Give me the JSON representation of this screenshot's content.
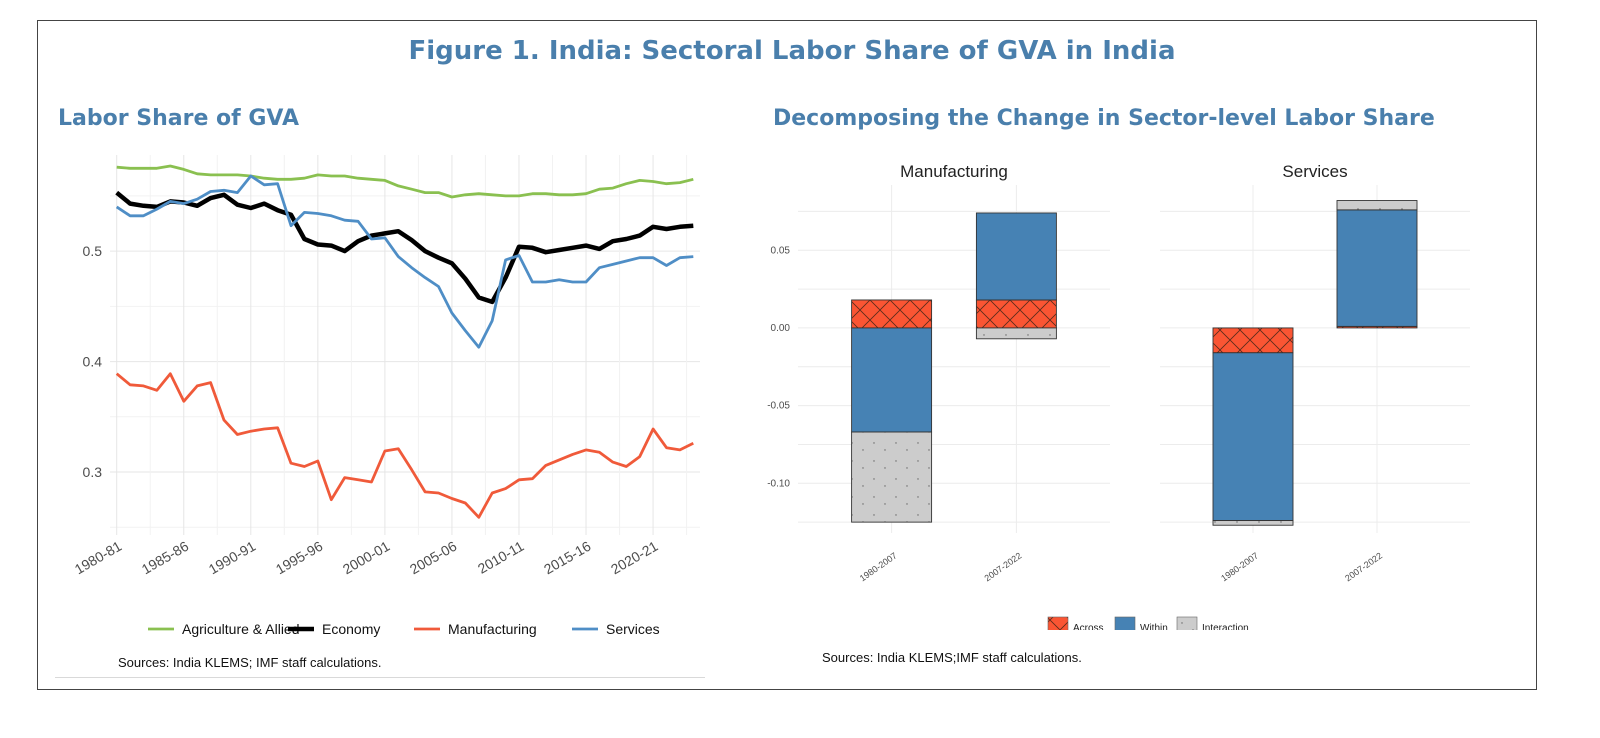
{
  "figure": {
    "title": "Figure 1. India: Sectoral Labor Share of GVA in India"
  },
  "colors": {
    "title_blue": "#4a7fac",
    "agriculture": "#8ac050",
    "economy": "#000000",
    "manufacturing": "#f05a3a",
    "services": "#4f8ec6",
    "across": "#fa5533",
    "within": "#4682b4",
    "interaction": "#cccccc"
  },
  "chart_data": [
    {
      "type": "line",
      "title": "Labor Share of GVA",
      "source": "Sources: India KLEMS; IMF staff calculations.",
      "xlabel": "",
      "ylabel": "",
      "x_start_year": 1980,
      "x_tick_labels": [
        "1980-81",
        "1985-86",
        "1990-91",
        "1995-96",
        "2000-01",
        "2005-06",
        "2010-11",
        "2015-16",
        "2020-21"
      ],
      "y_ticks": [
        0.3,
        0.4,
        0.5
      ],
      "y_tick_labels": [
        "0.3",
        "0.4",
        "0.5"
      ],
      "ylim": [
        0.243,
        0.587
      ],
      "xlim": [
        1979.5,
        2023.5
      ],
      "grid": true,
      "legend_position": "bottom",
      "x": [
        1980,
        1981,
        1982,
        1983,
        1984,
        1985,
        1986,
        1987,
        1988,
        1989,
        1990,
        1991,
        1992,
        1993,
        1994,
        1995,
        1996,
        1997,
        1998,
        1999,
        2000,
        2001,
        2002,
        2003,
        2004,
        2005,
        2006,
        2007,
        2008,
        2009,
        2010,
        2011,
        2012,
        2013,
        2014,
        2015,
        2016,
        2017,
        2018,
        2019,
        2020,
        2021,
        2022,
        2023
      ],
      "series": [
        {
          "name": "Agriculture & Allied",
          "color_key": "agriculture",
          "values": [
            0.576,
            0.575,
            0.575,
            0.575,
            0.577,
            0.574,
            0.57,
            0.569,
            0.569,
            0.569,
            0.568,
            0.566,
            0.565,
            0.565,
            0.566,
            0.569,
            0.568,
            0.568,
            0.566,
            0.565,
            0.564,
            0.559,
            0.556,
            0.553,
            0.553,
            0.549,
            0.551,
            0.552,
            0.551,
            0.55,
            0.55,
            0.552,
            0.552,
            0.551,
            0.551,
            0.552,
            0.556,
            0.557,
            0.561,
            0.564,
            0.563,
            0.561,
            0.562,
            0.565
          ]
        },
        {
          "name": "Economy",
          "color_key": "economy",
          "values": [
            0.553,
            0.543,
            0.541,
            0.54,
            0.545,
            0.544,
            0.541,
            0.548,
            0.551,
            0.542,
            0.539,
            0.543,
            0.537,
            0.533,
            0.511,
            0.506,
            0.505,
            0.5,
            0.509,
            0.514,
            0.516,
            0.518,
            0.51,
            0.5,
            0.494,
            0.489,
            0.475,
            0.458,
            0.454,
            0.476,
            0.504,
            0.503,
            0.499,
            0.501,
            0.503,
            0.505,
            0.502,
            0.509,
            0.511,
            0.514,
            0.522,
            0.52,
            0.522,
            0.523
          ]
        },
        {
          "name": "Manufacturing",
          "color_key": "manufacturing",
          "values": [
            0.389,
            0.379,
            0.378,
            0.374,
            0.389,
            0.364,
            0.378,
            0.381,
            0.347,
            0.334,
            0.337,
            0.339,
            0.34,
            0.308,
            0.305,
            0.31,
            0.275,
            0.295,
            0.293,
            0.291,
            0.319,
            0.321,
            0.302,
            0.282,
            0.281,
            0.276,
            0.272,
            0.259,
            0.281,
            0.285,
            0.293,
            0.294,
            0.306,
            0.311,
            0.316,
            0.32,
            0.318,
            0.309,
            0.305,
            0.314,
            0.339,
            0.322,
            0.32,
            0.326
          ]
        },
        {
          "name": "Services",
          "color_key": "services",
          "values": [
            0.54,
            0.532,
            0.532,
            0.538,
            0.545,
            0.543,
            0.547,
            0.554,
            0.555,
            0.553,
            0.568,
            0.56,
            0.561,
            0.523,
            0.535,
            0.534,
            0.532,
            0.528,
            0.527,
            0.511,
            0.512,
            0.495,
            0.485,
            0.476,
            0.468,
            0.444,
            0.428,
            0.413,
            0.437,
            0.492,
            0.496,
            0.472,
            0.472,
            0.474,
            0.472,
            0.472,
            0.485,
            0.488,
            0.491,
            0.494,
            0.494,
            0.487,
            0.494,
            0.495
          ]
        }
      ]
    },
    {
      "type": "bar",
      "stacked": true,
      "title": "Decomposing the Change in Sector-level Labor Share",
      "source": "Sources: India KLEMS;IMF staff calculations.",
      "categories": [
        "1980-2007",
        "2007-2022"
      ],
      "y_ticks": [
        -0.1,
        -0.05,
        0.0,
        0.05
      ],
      "y_tick_labels": [
        "-0.10",
        "-0.05",
        "0.00",
        "0.05"
      ],
      "ylim": [
        -0.132,
        0.092
      ],
      "grid": true,
      "legend_position": "bottom",
      "legend": [
        "Across",
        "Within",
        "Interaction"
      ],
      "panels": [
        {
          "title": "Manufacturing",
          "series": [
            {
              "name": "Across",
              "values": [
                0.018,
                0.018
              ]
            },
            {
              "name": "Within",
              "values": [
                -0.067,
                0.056
              ]
            },
            {
              "name": "Interaction",
              "values": [
                -0.058,
                -0.007
              ]
            }
          ]
        },
        {
          "title": "Services",
          "series": [
            {
              "name": "Across",
              "values": [
                -0.016,
                0.001
              ]
            },
            {
              "name": "Within",
              "values": [
                -0.108,
                0.075
              ]
            },
            {
              "name": "Interaction",
              "values": [
                -0.003,
                0.006
              ]
            }
          ]
        }
      ]
    }
  ]
}
